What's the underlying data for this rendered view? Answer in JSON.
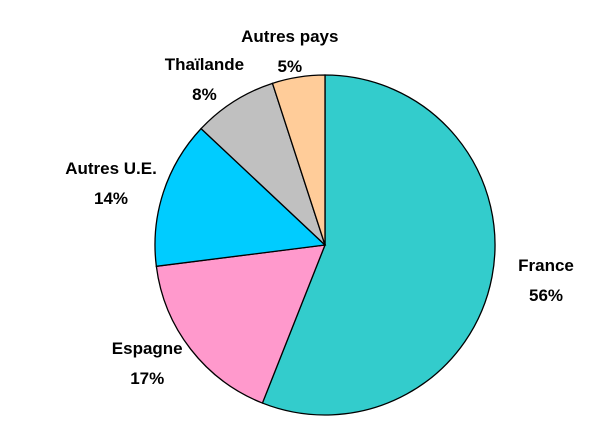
{
  "chart_data": {
    "type": "pie",
    "categories": [
      "France",
      "Espagne",
      "Autres U.E.",
      "Thaïlande",
      "Autres pays"
    ],
    "values": [
      56,
      17,
      14,
      8,
      5
    ],
    "value_labels": [
      "56%",
      "17%",
      "14%",
      "8%",
      "5%"
    ],
    "colors": [
      "#33cccc",
      "#ff99cc",
      "#00ccff",
      "#c0c0c0",
      "#ffcc99"
    ]
  }
}
